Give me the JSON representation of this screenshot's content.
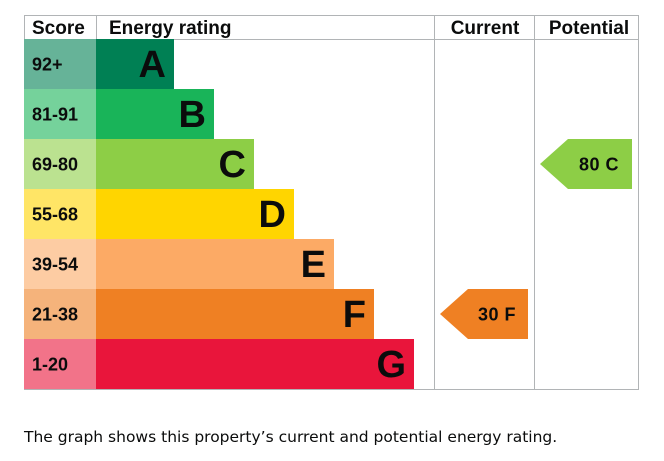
{
  "chart_data": {
    "type": "bar",
    "headers": {
      "score": "Score",
      "rating": "Energy rating",
      "current": "Current",
      "potential": "Potential"
    },
    "bands": [
      {
        "score": "92+",
        "letter": "A",
        "color": "#008054",
        "score_bg": "#66b398"
      },
      {
        "score": "81-91",
        "letter": "B",
        "color": "#19b459",
        "score_bg": "#75d29b"
      },
      {
        "score": "69-80",
        "letter": "C",
        "color": "#8dce46",
        "score_bg": "#bbe290"
      },
      {
        "score": "55-68",
        "letter": "D",
        "color": "#ffd500",
        "score_bg": "#ffe566"
      },
      {
        "score": "39-54",
        "letter": "E",
        "color": "#fcaa65",
        "score_bg": "#fdcca3"
      },
      {
        "score": "21-38",
        "letter": "F",
        "color": "#ef8023",
        "score_bg": "#f5b37b"
      },
      {
        "score": "1-20",
        "letter": "G",
        "color": "#e9153b",
        "score_bg": "#f27389"
      }
    ],
    "current": {
      "value": 30,
      "letter": "F",
      "label": "30 F",
      "color": "#ef8023"
    },
    "potential": {
      "value": 80,
      "letter": "C",
      "label": "80 C",
      "color": "#8dce46"
    }
  },
  "caption": "The graph shows this property’s current and potential energy rating."
}
